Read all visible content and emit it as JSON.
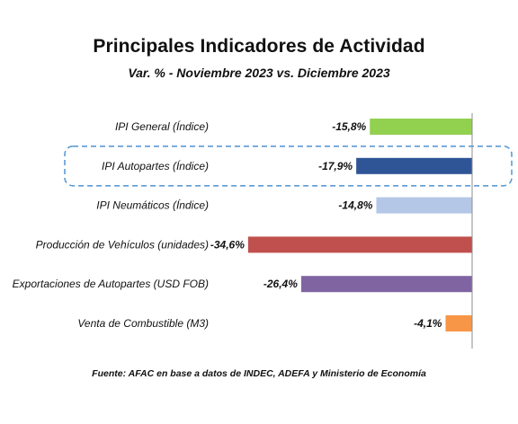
{
  "header": {
    "title": "Principales Indicadores de Actividad",
    "subtitle": "Var. % - Noviembre 2023 vs. Diciembre 2023"
  },
  "footer": {
    "source": "Fuente: AFAC en base a datos de INDEC, ADEFA y Ministerio de Economía"
  },
  "chart_data": {
    "type": "bar",
    "orientation": "horizontal",
    "categories": [
      "IPI General (Índice)",
      "IPI Autopartes (Índice)",
      "IPI Neumáticos (Índice)",
      "Producción de Vehículos (unidades)",
      "Exportaciones de Autopartes (USD FOB)",
      "Venta de Combustible (M3)"
    ],
    "values": [
      -15.8,
      -17.9,
      -14.8,
      -34.6,
      -26.4,
      -4.1
    ],
    "value_labels": [
      "-15,8%",
      "-17,9%",
      "-14,8%",
      "-34,6%",
      "-26,4%",
      "-4,1%"
    ],
    "colors": [
      "#92d050",
      "#2f5597",
      "#b4c7e7",
      "#c0504d",
      "#8064a2",
      "#f79646"
    ],
    "highlighted_category": "IPI Autopartes (Índice)",
    "highlight_color": "#5b9bd5",
    "xlim": [
      -35,
      0
    ],
    "grid": false,
    "legend": "none"
  }
}
